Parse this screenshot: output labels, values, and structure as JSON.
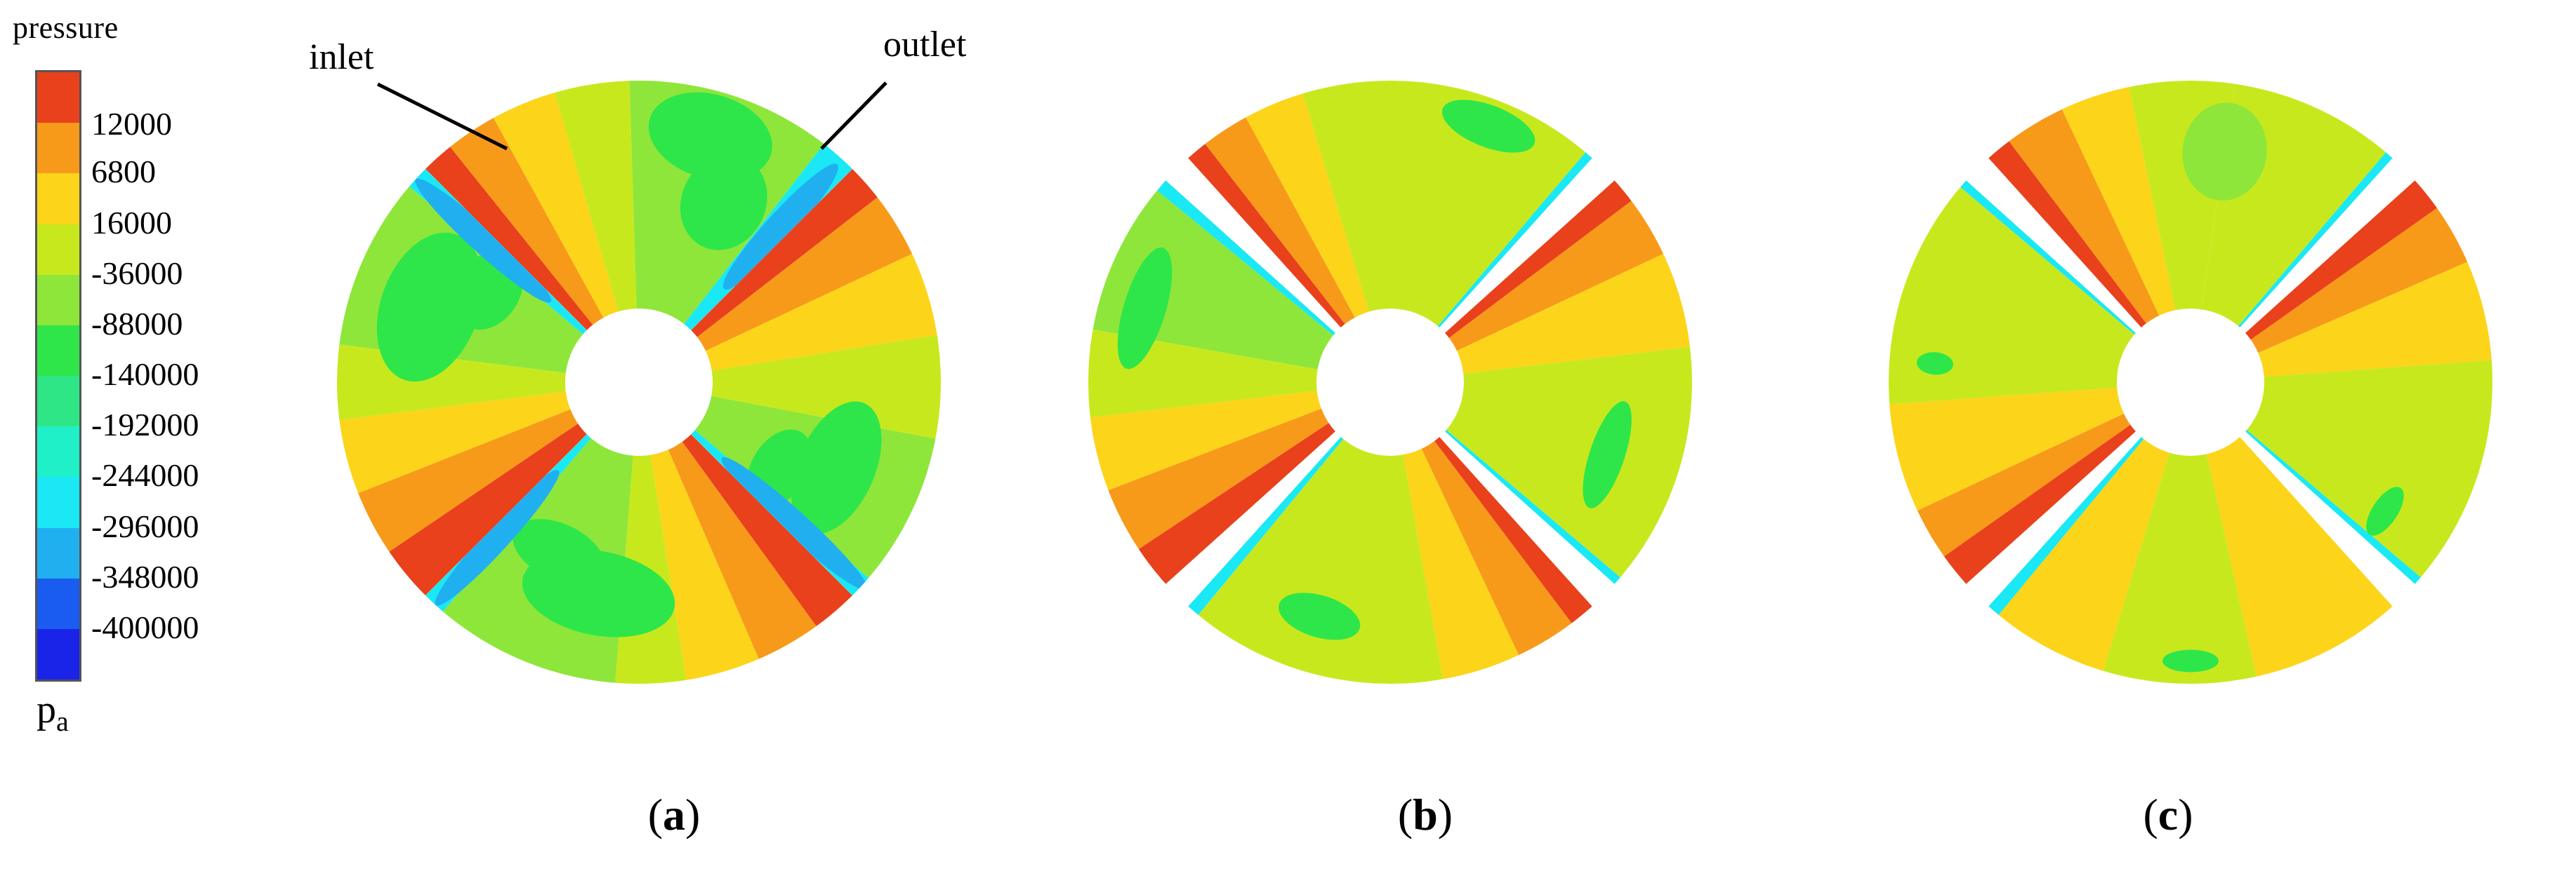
{
  "colors": {
    "band0": "#e8411c",
    "band1": "#f79a1a",
    "band2": "#fcd41a",
    "band3": "#c8e81e",
    "band4": "#8ee63a",
    "band5": "#2ee64a",
    "band6": "#2ee686",
    "band7": "#1ff0c8",
    "band8": "#1ae8f4",
    "band9": "#20b0f0",
    "band10": "#1a5cf0",
    "band11": "#1a24e8"
  },
  "legend": {
    "title": "pressure",
    "unit_main": "p",
    "unit_sub": "a",
    "labels": [
      "12000",
      "6800",
      "16000",
      "-36000",
      "-88000",
      "-140000",
      "-192000",
      "-244000",
      "-296000",
      "-348000",
      "-400000"
    ],
    "colors": [
      "#e8411c",
      "#f79a1a",
      "#fcd41a",
      "#c8e81e",
      "#8ee63a",
      "#2ee64a",
      "#2ee686",
      "#1ff0c8",
      "#1ae8f4",
      "#20b0f0",
      "#1a5cf0",
      "#1a24e8"
    ]
  },
  "callouts": {
    "inlet": "inlet",
    "outlet": "outlet"
  },
  "panels": [
    {
      "caption_open": "(",
      "caption_letter": "a",
      "caption_close": ")"
    },
    {
      "caption_open": "(",
      "caption_letter": "b",
      "caption_close": ")"
    },
    {
      "caption_open": "(",
      "caption_letter": "c",
      "caption_close": ")"
    }
  ]
}
